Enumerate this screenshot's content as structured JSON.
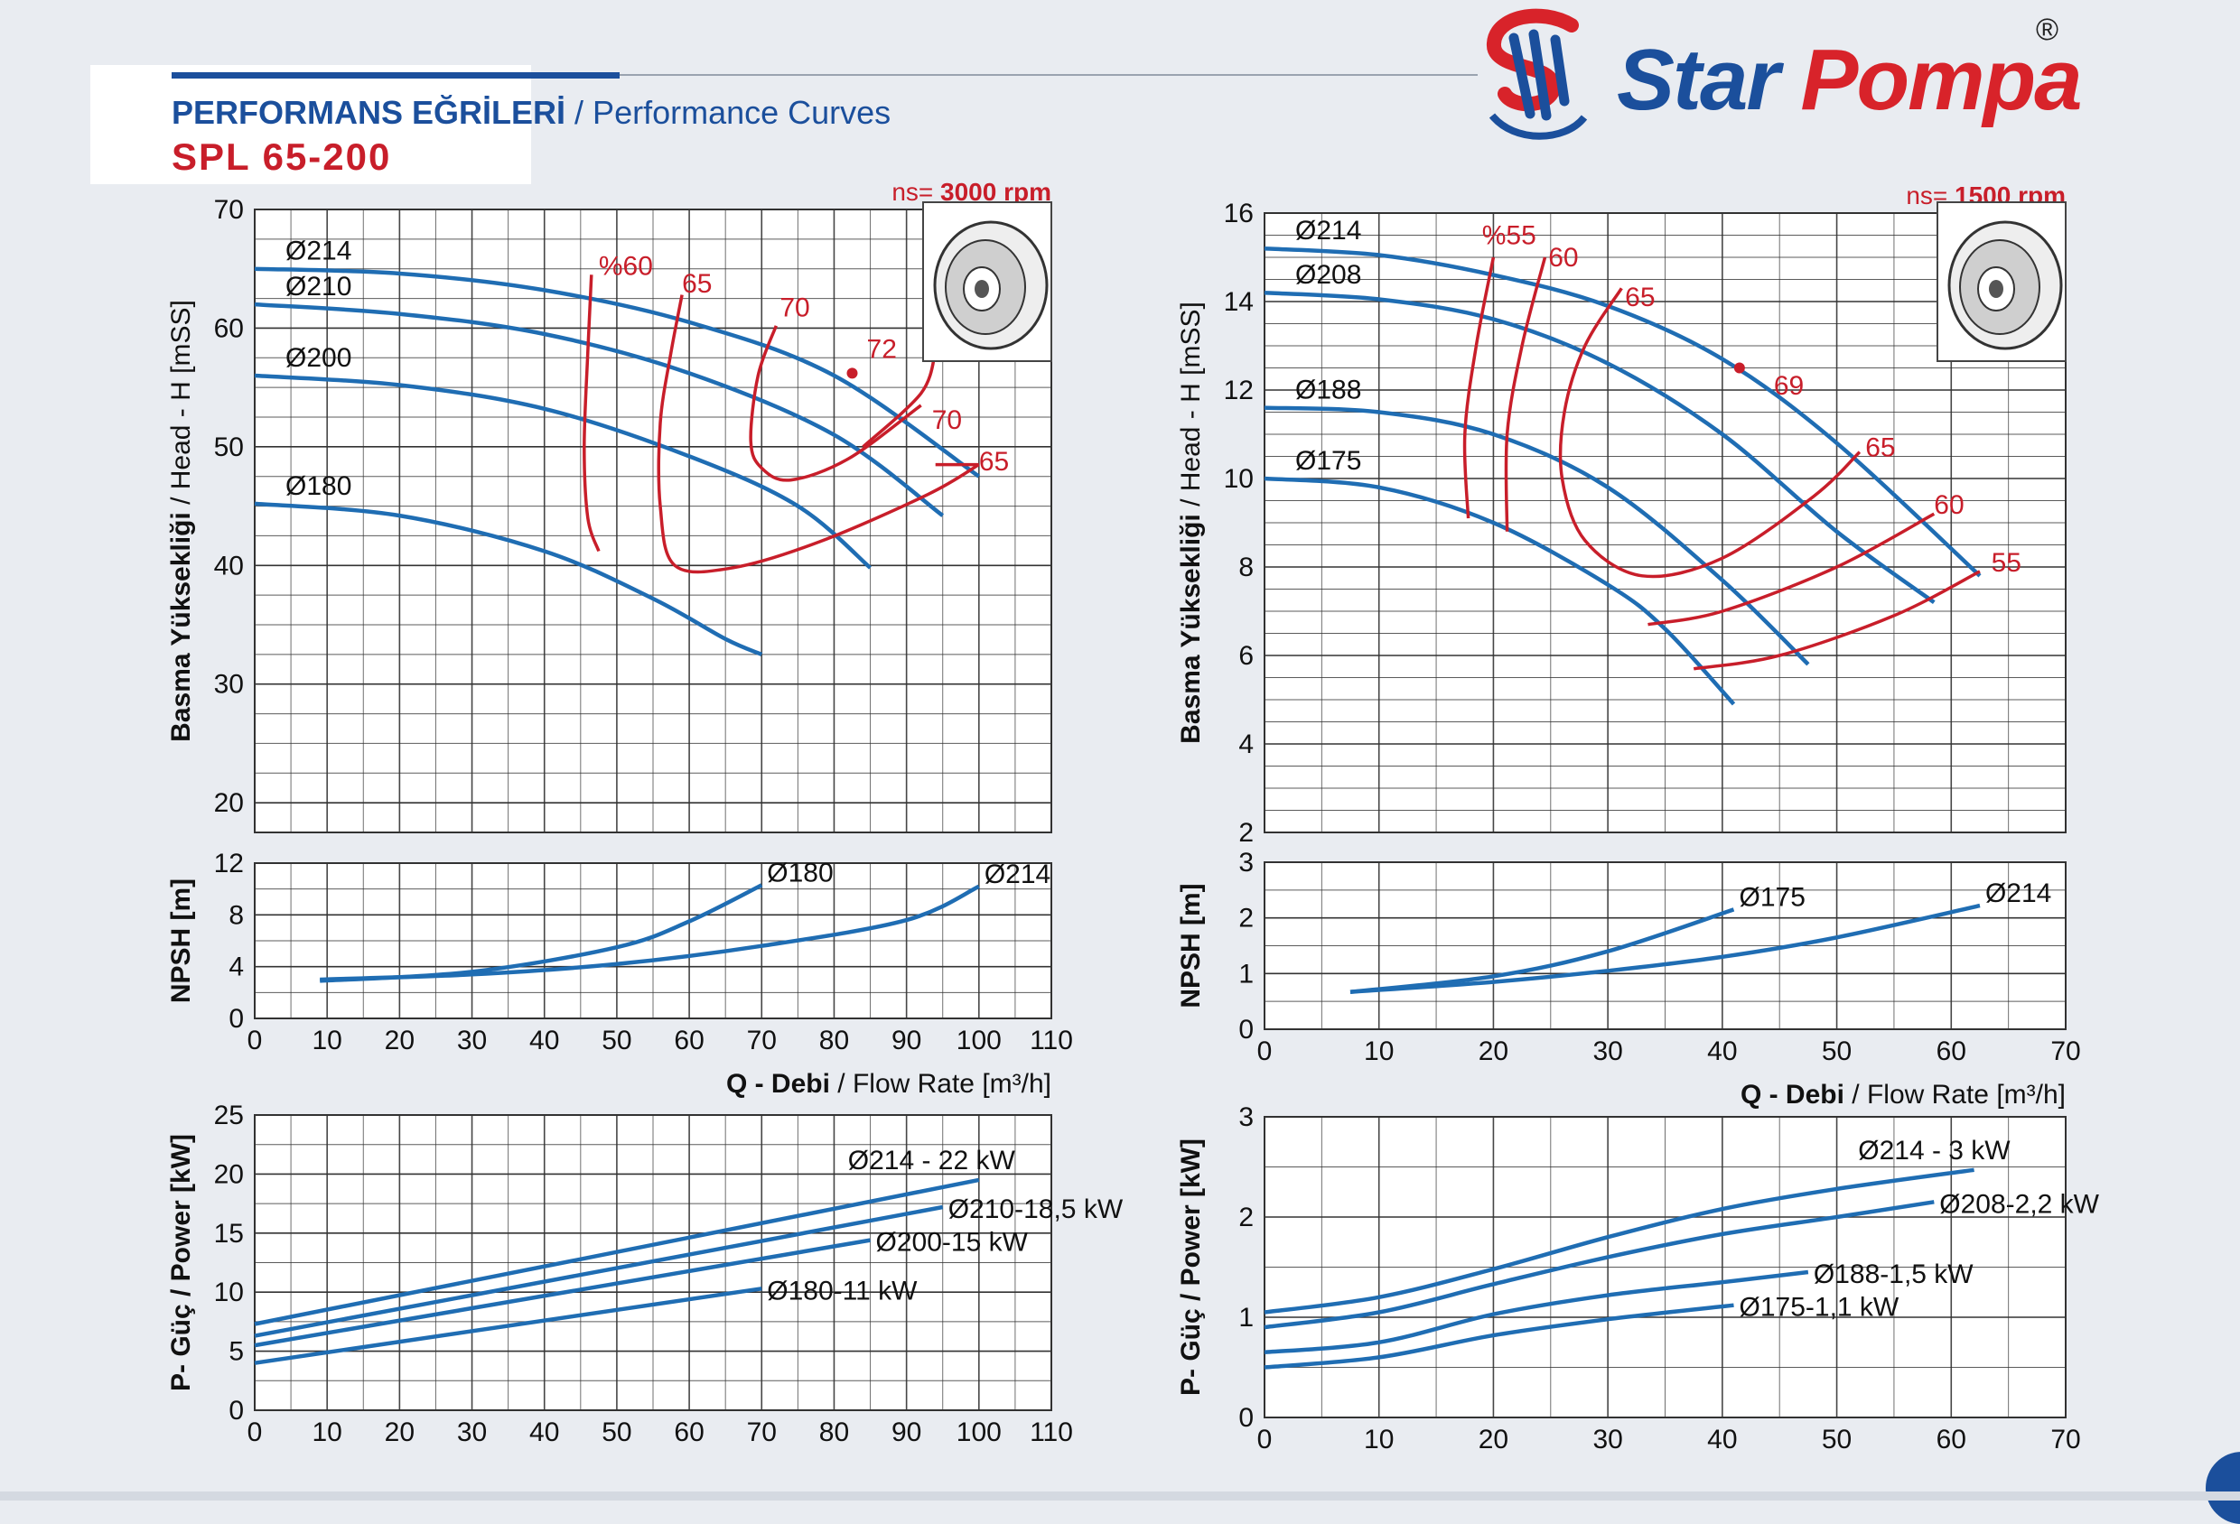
{
  "header": {
    "title_tr": "PERFORMANS EĞRİLERİ",
    "title_en": "/ Performance Curves",
    "model": "SPL 65-200"
  },
  "brand": {
    "name_part1": "Star",
    "name_part2": "Pompa",
    "registered": "®"
  },
  "colors": {
    "head_curve": "#1f6db3",
    "efficiency_curve": "#c81e2a",
    "grid": "#333333",
    "brand_blue": "#1b4f9c",
    "brand_red": "#d8232a"
  },
  "icons": [
    "impeller-drawing-icon",
    "star-pompa-logo-icon"
  ],
  "chart_data": [
    {
      "id": "left",
      "type": "line",
      "rpm_label_prefix": "ns=",
      "rpm_label": "3000 rpm",
      "xlabel_bold": "Q - Debi",
      "xlabel_rest": "/ Flow Rate [m³/h]",
      "x_ticks": [
        0,
        10,
        20,
        30,
        40,
        50,
        60,
        70,
        80,
        90,
        100,
        110
      ],
      "xlim": [
        0,
        110
      ],
      "head": {
        "ylabel_bold": "Basma Yüksekliği",
        "ylabel_rest": "/ Head - H [mSS]",
        "ylim": [
          17.5,
          70
        ],
        "y_ticks": [
          20,
          30,
          40,
          50,
          60,
          70
        ],
        "series": [
          {
            "name": "Ø214",
            "x": [
              0,
              20,
              40,
              60,
              80,
              100
            ],
            "y": [
              65,
              64.6,
              63.2,
              60.5,
              56,
              47.5
            ]
          },
          {
            "name": "Ø210",
            "x": [
              0,
              20,
              40,
              60,
              80,
              95
            ],
            "y": [
              62,
              61.2,
              59.5,
              56.2,
              51,
              44.2
            ]
          },
          {
            "name": "Ø200",
            "x": [
              0,
              20,
              40,
              60,
              75,
              85
            ],
            "y": [
              56,
              55.2,
              53.2,
              49.2,
              45,
              39.8
            ]
          },
          {
            "name": "Ø180",
            "x": [
              0,
              20,
              40,
              55,
              65,
              70
            ],
            "y": [
              45.2,
              44.2,
              41.2,
              37.2,
              33.8,
              32.5
            ]
          }
        ],
        "efficiency": [
          {
            "label": "%60",
            "x": [
              46.5,
              46,
              45.5,
              46,
              47.5
            ],
            "y": [
              64.5,
              58,
              50,
              44,
              41.2
            ]
          },
          {
            "label": "65",
            "x": [
              59,
              57.5,
              56,
              56,
              58,
              66,
              78,
              93,
              100
            ],
            "y": [
              62.8,
              58,
              52,
              45,
              40,
              39.8,
              42,
              46,
              48.5
            ]
          },
          {
            "label": "70",
            "x": [
              72,
              69.5,
              68.5,
              70,
              74,
              82,
              92
            ],
            "y": [
              60.2,
              56,
              50.5,
              48.2,
              47.2,
              49,
              53.5
            ]
          },
          {
            "label": "70",
            "x": [
              84,
              92,
              94
            ],
            "y": [
              50,
              54.5,
              58
            ]
          },
          {
            "label": "65",
            "x": [
              94,
              100
            ],
            "y": [
              48.5,
              48.5
            ]
          }
        ],
        "efficiency_labels": [
          {
            "text": "%60",
            "x": 47.5,
            "y": 64.5
          },
          {
            "text": "65",
            "x": 59,
            "y": 63
          },
          {
            "text": "70",
            "x": 72.5,
            "y": 61
          },
          {
            "text": "72",
            "x": 84.5,
            "y": 57.5
          },
          {
            "text": "70",
            "x": 93.5,
            "y": 51.5
          },
          {
            "text": "65",
            "x": 100,
            "y": 48
          }
        ],
        "bep": {
          "label": "72",
          "x": 82.5,
          "y": 56.2
        }
      },
      "npsh": {
        "ylabel": "NPSH [m]",
        "ylim": [
          0,
          12
        ],
        "y_ticks": [
          0,
          4,
          8,
          12
        ],
        "series": [
          {
            "name": "Ø180",
            "x": [
              9,
              30,
              50,
              60,
              70
            ],
            "y": [
              2.9,
              3.6,
              5.5,
              7.5,
              10.3
            ]
          },
          {
            "name": "Ø214",
            "x": [
              9,
              30,
              50,
              70,
              90,
              100
            ],
            "y": [
              3,
              3.4,
              4.2,
              5.6,
              7.6,
              10.2
            ]
          }
        ]
      },
      "power": {
        "ylabel": "P- Güç / Power [kW]",
        "ylim": [
          0,
          25
        ],
        "y_ticks": [
          0,
          5,
          10,
          15,
          20,
          25
        ],
        "series": [
          {
            "name": "Ø214 - 22 kW",
            "x": [
              0,
              100
            ],
            "y": [
              7.3,
              19.5
            ]
          },
          {
            "name": "Ø210-18,5 kW",
            "x": [
              0,
              95
            ],
            "y": [
              6.3,
              17.2
            ]
          },
          {
            "name": "Ø200-15 kW",
            "x": [
              0,
              85
            ],
            "y": [
              5.5,
              14.4
            ]
          },
          {
            "name": "Ø180-11 kW",
            "x": [
              0,
              70
            ],
            "y": [
              4,
              10.3
            ]
          }
        ]
      }
    },
    {
      "id": "right",
      "type": "line",
      "rpm_label_prefix": "ns=",
      "rpm_label": "1500 rpm",
      "xlabel_bold": "Q - Debi",
      "xlabel_rest": "/ Flow Rate [m³/h]",
      "x_ticks": [
        0,
        10,
        20,
        30,
        40,
        50,
        60,
        70
      ],
      "xlim": [
        0,
        70
      ],
      "head": {
        "ylabel_bold": "Basma Yüksekliği",
        "ylabel_rest": "/ Head - H [mSS]",
        "ylim": [
          2,
          16
        ],
        "y_ticks": [
          2,
          4,
          6,
          8,
          10,
          12,
          14,
          16
        ],
        "series": [
          {
            "name": "Ø214",
            "x": [
              0,
              10,
              20,
              30,
              40,
              50,
              62.5
            ],
            "y": [
              15.2,
              15.05,
              14.6,
              13.9,
              12.7,
              10.8,
              7.8
            ]
          },
          {
            "name": "Ø208",
            "x": [
              0,
              10,
              20,
              30,
              40,
              50,
              58.5
            ],
            "y": [
              14.2,
              14.05,
              13.6,
              12.6,
              11,
              8.8,
              7.2
            ]
          },
          {
            "name": "Ø188",
            "x": [
              0,
              10,
              20,
              30,
              40,
              47.5
            ],
            "y": [
              11.6,
              11.5,
              11,
              9.8,
              7.7,
              5.8
            ]
          },
          {
            "name": "Ø175",
            "x": [
              0,
              10,
              20,
              30,
              35,
              41
            ],
            "y": [
              10,
              9.8,
              9,
              7.6,
              6.6,
              4.9
            ]
          }
        ],
        "efficiency": [
          {
            "label": "%55",
            "x": [
              20,
              18.5,
              17.5,
              17.8
            ],
            "y": [
              15,
              13,
              11,
              9.1
            ]
          },
          {
            "label": "60",
            "x": [
              24.5,
              22.5,
              21.2,
              21.2
            ],
            "y": [
              15,
              13,
              11,
              8.8
            ]
          },
          {
            "label": "65",
            "x": [
              31.2,
              28,
              26.2,
              26,
              28,
              33,
              40,
              48,
              52
            ],
            "y": [
              14.3,
              13,
              11.5,
              10,
              8.6,
              7.8,
              8.2,
              9.6,
              10.6
            ]
          },
          {
            "label": "60",
            "x": [
              33.5,
              40,
              50,
              58.5
            ],
            "y": [
              6.7,
              7,
              8,
              9.2
            ]
          },
          {
            "label": "55",
            "x": [
              37.5,
              45,
              55,
              62.5
            ],
            "y": [
              5.7,
              6,
              6.9,
              7.9
            ]
          }
        ],
        "efficiency_labels": [
          {
            "text": "%55",
            "x": 19,
            "y": 15.3
          },
          {
            "text": "60",
            "x": 24.8,
            "y": 14.8
          },
          {
            "text": "65",
            "x": 31.5,
            "y": 13.9
          },
          {
            "text": "69",
            "x": 44.5,
            "y": 11.9
          },
          {
            "text": "65",
            "x": 52.5,
            "y": 10.5
          },
          {
            "text": "60",
            "x": 58.5,
            "y": 9.2
          },
          {
            "text": "55",
            "x": 63.5,
            "y": 7.9
          }
        ],
        "bep": {
          "label": "69",
          "x": 41.5,
          "y": 12.5
        }
      },
      "npsh": {
        "ylabel": "NPSH [m]",
        "ylim": [
          0,
          3
        ],
        "y_ticks": [
          0,
          1,
          2,
          3
        ],
        "series": [
          {
            "name": "Ø175",
            "x": [
              7.5,
              20,
              30,
              41
            ],
            "y": [
              0.67,
              0.95,
              1.4,
              2.15
            ]
          },
          {
            "name": "Ø214",
            "x": [
              7.5,
              20,
              30,
              40,
              50,
              62.5
            ],
            "y": [
              0.67,
              0.85,
              1.05,
              1.3,
              1.65,
              2.22
            ]
          }
        ]
      },
      "power": {
        "ylabel": "P- Güç / Power [kW]",
        "ylim": [
          0,
          3
        ],
        "y_ticks": [
          0,
          1,
          2,
          3
        ],
        "series": [
          {
            "name": "Ø214 - 3 kW",
            "x": [
              0,
              10,
              20,
              30,
              40,
              50,
              62
            ],
            "y": [
              1.05,
              1.2,
              1.48,
              1.8,
              2.08,
              2.28,
              2.47
            ]
          },
          {
            "name": "Ø208-2,2 kW",
            "x": [
              0,
              10,
              20,
              30,
              40,
              50,
              58.5
            ],
            "y": [
              0.9,
              1.05,
              1.33,
              1.6,
              1.83,
              2,
              2.15
            ]
          },
          {
            "name": "Ø188-1,5 kW",
            "x": [
              0,
              10,
              20,
              30,
              40,
              47.5
            ],
            "y": [
              0.65,
              0.75,
              1.03,
              1.22,
              1.35,
              1.45
            ]
          },
          {
            "name": "Ø175-1,1 kW",
            "x": [
              0,
              10,
              20,
              30,
              41
            ],
            "y": [
              0.5,
              0.6,
              0.82,
              0.98,
              1.12
            ]
          }
        ]
      }
    }
  ]
}
